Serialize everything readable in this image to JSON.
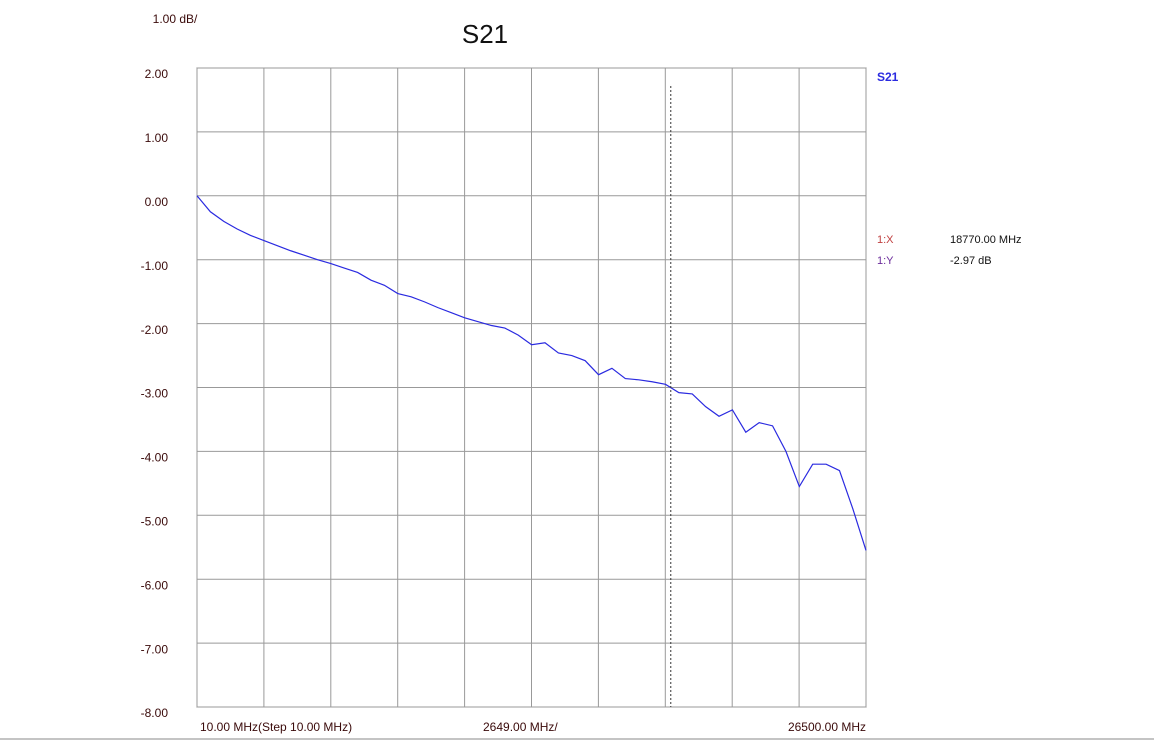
{
  "chart_data": {
    "type": "line",
    "title": "S21",
    "scale_label": "1.00 dB/",
    "x_start_label": "10.00 MHz(Step 10.00 MHz)",
    "x_step_label": "2649.00 MHz/",
    "x_stop_label": "26500.00 MHz",
    "xlim": [
      10,
      26500
    ],
    "xticks": [
      10,
      2659,
      5308,
      7957,
      10606,
      13255,
      15904,
      18553,
      21202,
      23851,
      26500
    ],
    "ylim": [
      -8,
      2
    ],
    "yticks": [
      {
        "value": 2,
        "label": "2.00"
      },
      {
        "value": 1,
        "label": "1.00"
      },
      {
        "value": 0,
        "label": "0.00"
      },
      {
        "value": -1,
        "label": "-1.00"
      },
      {
        "value": -2,
        "label": "-2.00"
      },
      {
        "value": -3,
        "label": "-3.00"
      },
      {
        "value": -4,
        "label": "-4.00"
      },
      {
        "value": -5,
        "label": "-5.00"
      },
      {
        "value": -6,
        "label": "-6.00"
      },
      {
        "value": -7,
        "label": "-7.00"
      },
      {
        "value": -8,
        "label": "-8.00"
      }
    ],
    "grid": true,
    "x": [
      10,
      540,
      1070,
      1600,
      2130,
      2660,
      3190,
      3720,
      4250,
      4780,
      5310,
      5840,
      6370,
      6900,
      7430,
      7960,
      8490,
      9020,
      9550,
      10080,
      10610,
      11140,
      11670,
      12200,
      12730,
      13260,
      13790,
      14320,
      14850,
      15380,
      15910,
      16440,
      16970,
      17500,
      18030,
      18560,
      19090,
      19620,
      20150,
      20680,
      21210,
      21740,
      22270,
      22800,
      23330,
      23860,
      24390,
      24920,
      25450,
      25980,
      26500
    ],
    "series": [
      {
        "name": "S21",
        "color": "#2a2ae0",
        "values": [
          0.0,
          -0.25,
          -0.4,
          -0.52,
          -0.62,
          -0.7,
          -0.78,
          -0.86,
          -0.93,
          -1.0,
          -1.06,
          -1.13,
          -1.2,
          -1.32,
          -1.4,
          -1.53,
          -1.58,
          -1.66,
          -1.75,
          -1.83,
          -1.91,
          -1.97,
          -2.03,
          -2.07,
          -2.18,
          -2.33,
          -2.3,
          -2.46,
          -2.5,
          -2.58,
          -2.8,
          -2.7,
          -2.86,
          -2.88,
          -2.91,
          -2.95,
          -3.08,
          -3.1,
          -3.3,
          -3.45,
          -3.35,
          -3.7,
          -3.55,
          -3.6,
          -4.0,
          -4.55,
          -4.2,
          -4.2,
          -4.3,
          -4.9,
          -5.55
        ]
      }
    ],
    "marker": {
      "x": 18770,
      "y": -2.97,
      "x_name": "1:X",
      "x_label": "18770.00 MHz",
      "y_name": "1:Y",
      "y_label": "-2.97 dB"
    }
  }
}
